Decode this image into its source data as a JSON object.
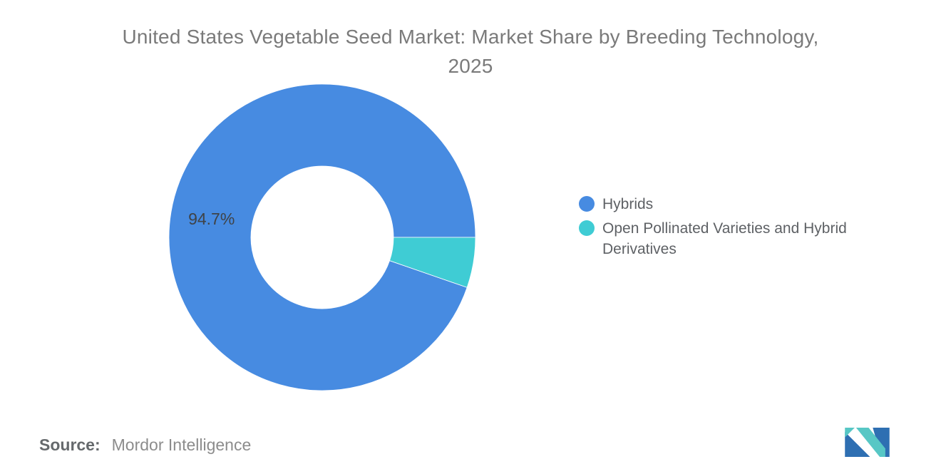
{
  "title": {
    "line1": "United States Vegetable Seed Market: Market Share by Breeding Technology,",
    "line2": "2025"
  },
  "chart_data": {
    "type": "pie",
    "subtype": "donut",
    "title": "United States Vegetable Seed Market: Market Share by Breeding Technology, 2025",
    "unit": "%",
    "legend_position": "right",
    "donut_hole_ratio": 0.465,
    "slices": [
      {
        "label": "Hybrids",
        "value": 94.7,
        "color": "#478be1",
        "data_label": "94.7%"
      },
      {
        "label": "Open Pollinated Varieties and Hybrid Derivatives",
        "value": 5.3,
        "color": "#3fccd4",
        "data_label": ""
      }
    ]
  },
  "source": {
    "label": "Source:",
    "value": "Mordor Intelligence"
  },
  "branding": {
    "logo_name": "mordor-intelligence-logo",
    "logo_blue": "#2e6fb2",
    "logo_teal": "#57c7c5"
  },
  "colors": {
    "background": "#ffffff",
    "title_text": "#7a7a7a",
    "slice_label_text": "#3f4347",
    "legend_text": "#5e6165",
    "source_label_text": "#65696c",
    "source_value_text": "#8c8c8c"
  }
}
